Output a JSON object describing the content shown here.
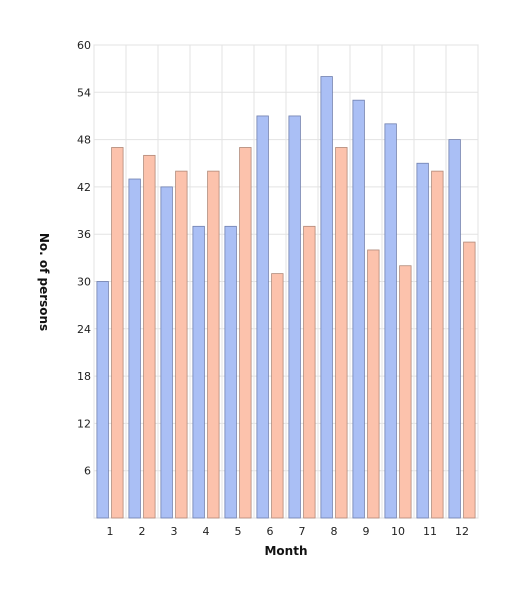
{
  "chart_data": {
    "type": "bar",
    "categories": [
      "1",
      "2",
      "3",
      "4",
      "5",
      "6",
      "7",
      "8",
      "9",
      "10",
      "11",
      "12"
    ],
    "series": [
      {
        "values": [
          30,
          43,
          42,
          37,
          37,
          51,
          51,
          56,
          53,
          50,
          45,
          48
        ],
        "color": "#aabff5"
      },
      {
        "values": [
          47,
          46,
          44,
          44,
          47,
          31,
          37,
          47,
          34,
          32,
          44,
          35
        ],
        "color": "#fcc2ac"
      }
    ],
    "title": "",
    "xlabel": "Month",
    "ylabel": "No. of persons",
    "ylim": [
      0,
      60
    ],
    "yticks": [
      6,
      12,
      18,
      24,
      30,
      36,
      42,
      48,
      54,
      60
    ],
    "grid": true,
    "legend": false
  }
}
